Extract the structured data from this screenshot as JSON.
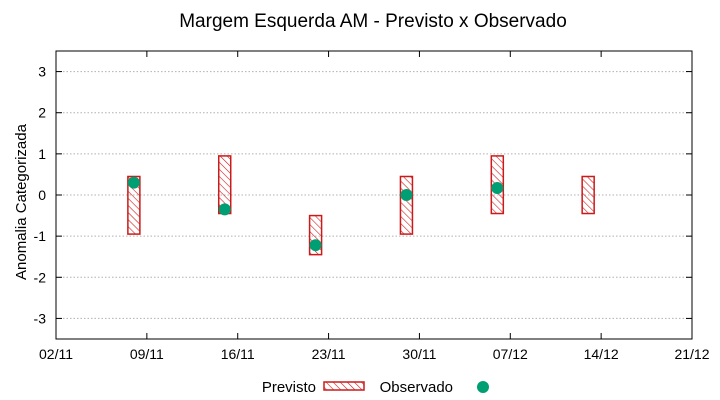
{
  "chart_data": {
    "type": "range-bar-with-points",
    "title": "Margem Esquerda AM - Previsto x Observado",
    "xlabel": "",
    "ylabel": "Anomalia Categorizada",
    "x_tick_labels": [
      "02/11",
      "09/11",
      "16/11",
      "23/11",
      "30/11",
      "07/12",
      "14/12",
      "21/12"
    ],
    "x_range_days": [
      0,
      49
    ],
    "ylim": [
      -3.5,
      3.5
    ],
    "y_ticks": [
      -3,
      -2,
      -1,
      0,
      1,
      2,
      3
    ],
    "y_tick_labels": [
      "-3",
      "-2",
      "-1",
      "0",
      "1",
      "2",
      "3"
    ],
    "grid": "horizontal",
    "legend_position": "bottom-center",
    "series": [
      {
        "name": "Previsto",
        "style": "hatched-range-box",
        "color": "#cc1a1a",
        "points": [
          {
            "x_day": 6,
            "low": -0.95,
            "high": 0.45
          },
          {
            "x_day": 13,
            "low": -0.45,
            "high": 0.95
          },
          {
            "x_day": 20,
            "low": -1.45,
            "high": -0.5
          },
          {
            "x_day": 27,
            "low": -0.95,
            "high": 0.45
          },
          {
            "x_day": 34,
            "low": -0.45,
            "high": 0.95
          },
          {
            "x_day": 41,
            "low": -0.45,
            "high": 0.45
          }
        ]
      },
      {
        "name": "Observado",
        "style": "point",
        "color": "#009e73",
        "points": [
          {
            "x_day": 6,
            "y": 0.3
          },
          {
            "x_day": 13,
            "y": -0.35
          },
          {
            "x_day": 20,
            "y": -1.22
          },
          {
            "x_day": 27,
            "y": 0.0
          },
          {
            "x_day": 34,
            "y": 0.17
          }
        ]
      }
    ]
  }
}
